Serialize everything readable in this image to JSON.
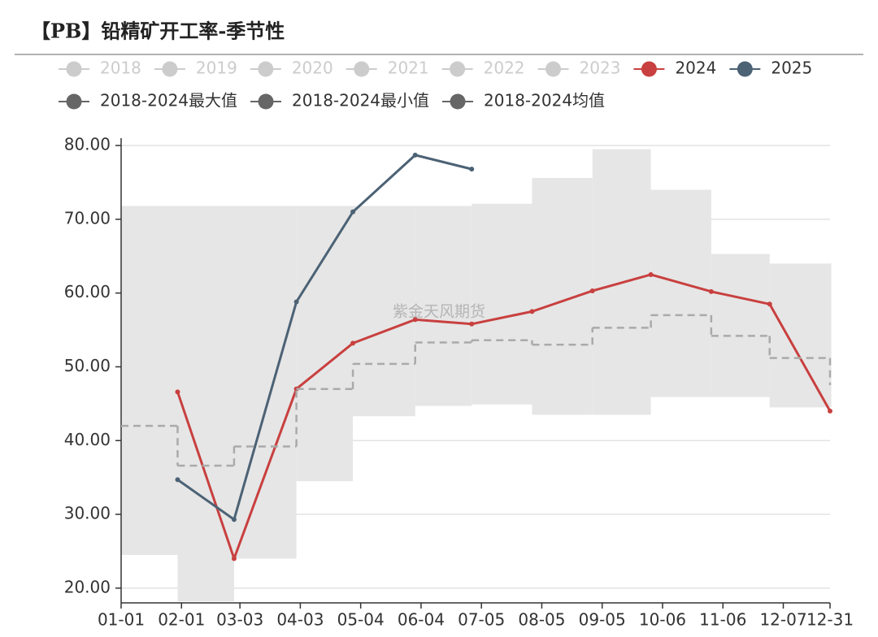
{
  "chart_data": {
    "type": "line",
    "title": "【PB】铅精矿开工率-季节性",
    "watermark": "紫金天风期货",
    "x": [
      1,
      30,
      59,
      91,
      120,
      152,
      181,
      212,
      243,
      273,
      304,
      334,
      365
    ],
    "xlim": [
      1,
      365
    ],
    "xticks": [
      {
        "value": 1,
        "label": "01-01"
      },
      {
        "value": 32,
        "label": "02-01"
      },
      {
        "value": 62,
        "label": "03-03"
      },
      {
        "value": 93,
        "label": "04-03"
      },
      {
        "value": 124,
        "label": "05-04"
      },
      {
        "value": 155,
        "label": "06-04"
      },
      {
        "value": 186,
        "label": "07-05"
      },
      {
        "value": 217,
        "label": "08-05"
      },
      {
        "value": 248,
        "label": "09-05"
      },
      {
        "value": 279,
        "label": "10-06"
      },
      {
        "value": 310,
        "label": "11-06"
      },
      {
        "value": 341,
        "label": "12-07"
      },
      {
        "value": 365,
        "label": "12-31"
      }
    ],
    "ylim": [
      18,
      81
    ],
    "yticks": [
      {
        "value": 20,
        "label": "20.00"
      },
      {
        "value": 30,
        "label": "30.00"
      },
      {
        "value": 40,
        "label": "40.00"
      },
      {
        "value": 50,
        "label": "50.00"
      },
      {
        "value": 60,
        "label": "60.00"
      },
      {
        "value": 70,
        "label": "70.00"
      },
      {
        "value": 80,
        "label": "80.00"
      }
    ],
    "grid": true,
    "legend": "top-left",
    "series": [
      {
        "name": "2018",
        "color": "#cccccc",
        "inactive": true,
        "values": [
          null,
          null,
          null,
          null,
          null,
          null,
          null,
          null,
          null,
          null,
          null,
          null,
          null
        ]
      },
      {
        "name": "2019",
        "color": "#cccccc",
        "inactive": true,
        "values": [
          null,
          null,
          null,
          null,
          null,
          null,
          null,
          null,
          null,
          null,
          null,
          null,
          null
        ]
      },
      {
        "name": "2020",
        "color": "#cccccc",
        "inactive": true,
        "values": [
          null,
          null,
          null,
          null,
          null,
          null,
          null,
          null,
          null,
          null,
          null,
          null,
          null
        ]
      },
      {
        "name": "2021",
        "color": "#cccccc",
        "inactive": true,
        "values": [
          null,
          null,
          null,
          null,
          null,
          null,
          null,
          null,
          null,
          null,
          null,
          null,
          null
        ]
      },
      {
        "name": "2022",
        "color": "#cccccc",
        "inactive": true,
        "values": [
          null,
          null,
          null,
          null,
          null,
          null,
          null,
          null,
          null,
          null,
          null,
          null,
          null
        ]
      },
      {
        "name": "2023",
        "color": "#cccccc",
        "inactive": true,
        "values": [
          null,
          null,
          null,
          null,
          null,
          null,
          null,
          null,
          null,
          null,
          null,
          null,
          null
        ]
      },
      {
        "name": "2024",
        "color": "#c8403f",
        "values": [
          null,
          46.6,
          24.0,
          47.0,
          53.2,
          56.4,
          55.8,
          57.5,
          60.3,
          62.5,
          60.2,
          58.5,
          44.0
        ]
      },
      {
        "name": "2025",
        "color": "#4c6275",
        "values": [
          null,
          34.7,
          29.3,
          58.8,
          71.0,
          78.7,
          76.8,
          null,
          null,
          null,
          null,
          null,
          null
        ]
      },
      {
        "name": "2018-2024最大值",
        "color": "#666666",
        "role": "band-upper",
        "fill": "#e6e6e6",
        "values": [
          71.8,
          71.8,
          71.8,
          71.8,
          71.8,
          71.8,
          72.1,
          75.6,
          79.5,
          74.0,
          65.3,
          64.0,
          64.0
        ]
      },
      {
        "name": "2018-2024最小值",
        "color": "#666666",
        "role": "band-lower",
        "fill": "#e6e6e6",
        "values": [
          24.5,
          18.2,
          24.0,
          34.5,
          43.3,
          44.7,
          44.9,
          43.5,
          43.5,
          45.9,
          45.9,
          44.5,
          44.5
        ]
      },
      {
        "name": "2018-2024均值",
        "color": "#666666",
        "role": "mean",
        "line_color": "#aaaaaa",
        "values": [
          42.0,
          36.6,
          39.2,
          47.0,
          50.4,
          53.3,
          53.6,
          53.0,
          55.3,
          57.0,
          54.2,
          51.2,
          47.5
        ]
      }
    ]
  }
}
